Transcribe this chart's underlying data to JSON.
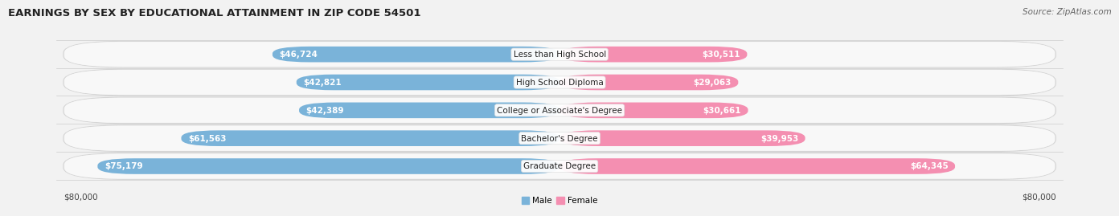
{
  "title": "EARNINGS BY SEX BY EDUCATIONAL ATTAINMENT IN ZIP CODE 54501",
  "source": "Source: ZipAtlas.com",
  "categories": [
    "Less than High School",
    "High School Diploma",
    "College or Associate's Degree",
    "Bachelor's Degree",
    "Graduate Degree"
  ],
  "male_values": [
    46724,
    42821,
    42389,
    61563,
    75179
  ],
  "female_values": [
    30511,
    29063,
    30661,
    39953,
    64345
  ],
  "male_color": "#7ab3d9",
  "female_color": "#f48fb1",
  "male_label": "Male",
  "female_label": "Female",
  "max_value": 80000,
  "bg_color": "#f2f2f2",
  "row_bg_color": "#e8e8e8",
  "row_inner_bg": "#f7f7f7",
  "axis_label_left": "$80,000",
  "axis_label_right": "$80,000",
  "title_fontsize": 9.5,
  "source_fontsize": 7.5,
  "value_fontsize": 7.5,
  "category_fontsize": 7.5
}
